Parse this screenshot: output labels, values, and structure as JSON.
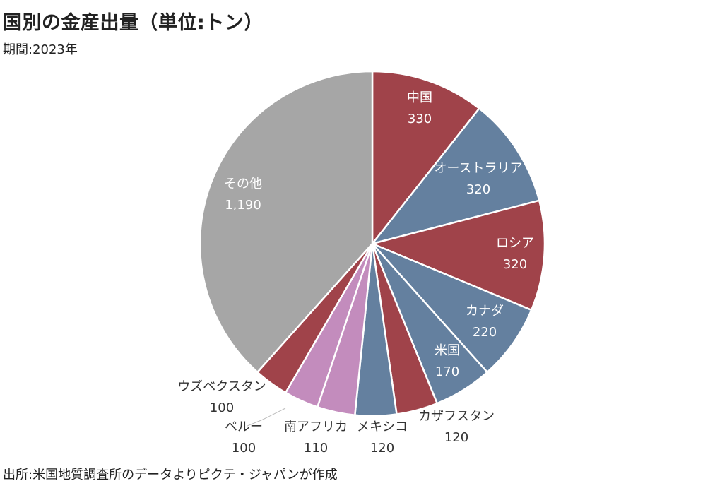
{
  "header": {
    "title": "国別の金産出量（単位:トン）",
    "subtitle": "期間:2023年"
  },
  "footer": {
    "source": "出所:米国地質調査所のデータよりピクテ・ジャパンが作成"
  },
  "colors": {
    "red": "#a0434a",
    "blue": "#64809f",
    "pink": "#c38cbd",
    "gray": "#a6a6a6",
    "leader": "#bbbbbb"
  },
  "chart_data": {
    "type": "pie",
    "title": "国別の金産出量（単位:トン）",
    "start_angle_deg": 0,
    "direction": "clockwise",
    "slices": [
      {
        "name": "中国",
        "value": 330,
        "value_label": "330",
        "color": "#a0434a"
      },
      {
        "name": "オーストラリア",
        "value": 320,
        "value_label": "320",
        "color": "#64809f"
      },
      {
        "name": "ロシア",
        "value": 320,
        "value_label": "320",
        "color": "#a0434a"
      },
      {
        "name": "カナダ",
        "value": 220,
        "value_label": "220",
        "color": "#64809f"
      },
      {
        "name": "米国",
        "value": 170,
        "value_label": "170",
        "color": "#64809f"
      },
      {
        "name": "カザフスタン",
        "value": 120,
        "value_label": "120",
        "color": "#a0434a"
      },
      {
        "name": "メキシコ",
        "value": 120,
        "value_label": "120",
        "color": "#64809f"
      },
      {
        "name": "南アフリカ",
        "value": 110,
        "value_label": "110",
        "color": "#c38cbd"
      },
      {
        "name": "ペルー",
        "value": 100,
        "value_label": "100",
        "color": "#c38cbd"
      },
      {
        "name": "ウズベクスタン",
        "value": 100,
        "value_label": "100",
        "color": "#a0434a"
      },
      {
        "name": "その他",
        "value": 1190,
        "value_label": "1,190",
        "color": "#a6a6a6"
      }
    ]
  }
}
